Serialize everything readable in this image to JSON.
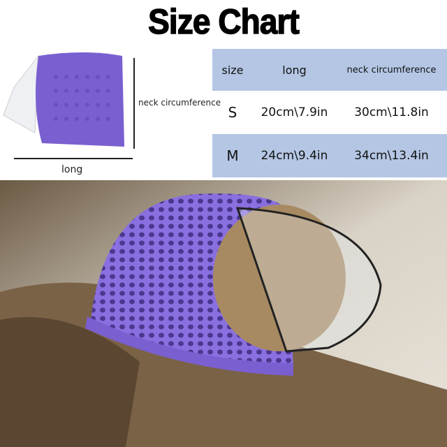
{
  "title": "Size Chart",
  "diagram": {
    "neck_label": "neck circumference",
    "long_label": "long"
  },
  "table": {
    "headers": [
      "size",
      "long",
      "neck circumference"
    ],
    "rows": [
      [
        "S",
        "20cm\\7.9in",
        "30cm\\11.8in"
      ],
      [
        "M",
        "24cm\\9.4in",
        "34cm\\13.4in"
      ]
    ]
  },
  "colors": {
    "table_band": "#b4c6e4",
    "hat_purple": "#7a5fd0"
  }
}
